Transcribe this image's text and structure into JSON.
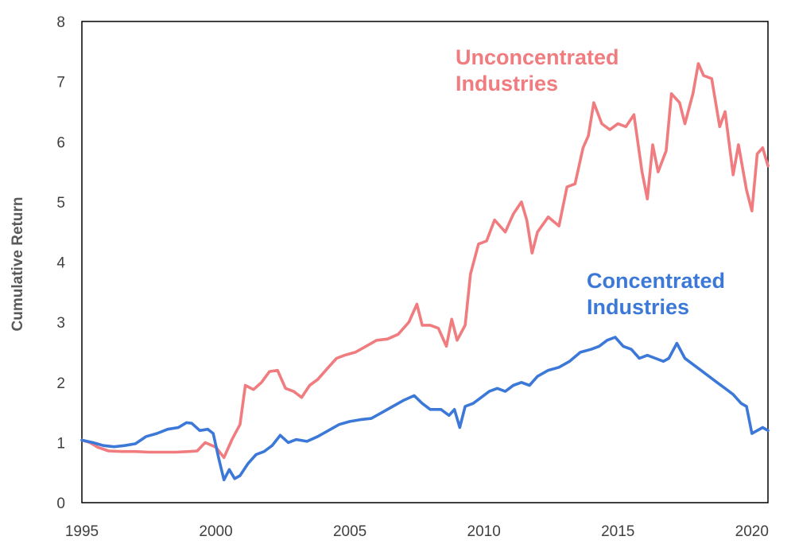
{
  "chart_data": {
    "type": "line",
    "ylabel": "Cumulative Return",
    "xlabel": "",
    "xlim": [
      1995,
      2020.6
    ],
    "ylim": [
      0,
      8
    ],
    "xticks": [
      1995,
      2000,
      2005,
      2010,
      2015,
      2020
    ],
    "yticks": [
      0,
      1,
      2,
      3,
      4,
      5,
      6,
      7,
      8
    ],
    "grid": false,
    "annotations": [
      {
        "lines": [
          "Unconcentrated",
          "Industries"
        ],
        "color": "#f07c7f",
        "series": 0
      },
      {
        "lines": [
          "Concentrated",
          "Industries"
        ],
        "color": "#3c78d8",
        "series": 1
      }
    ],
    "series": [
      {
        "name": "Unconcentrated Industries",
        "color": "#f07c7f",
        "x": [
          1995,
          1995.3,
          1995.6,
          1996.0,
          1996.5,
          1997.0,
          1997.5,
          1998.0,
          1998.5,
          1999.0,
          1999.3,
          1999.6,
          2000.0,
          2000.3,
          2000.6,
          2000.9,
          2001.1,
          2001.4,
          2001.7,
          2002.0,
          2002.3,
          2002.6,
          2002.9,
          2003.2,
          2003.5,
          2003.8,
          2004.2,
          2004.5,
          2004.8,
          2005.2,
          2005.6,
          2006.0,
          2006.4,
          2006.8,
          2007.2,
          2007.5,
          2007.7,
          2008.0,
          2008.3,
          2008.6,
          2008.8,
          2009.0,
          2009.3,
          2009.5,
          2009.8,
          2010.1,
          2010.4,
          2010.8,
          2011.1,
          2011.4,
          2011.6,
          2011.8,
          2012.0,
          2012.4,
          2012.8,
          2013.1,
          2013.4,
          2013.7,
          2013.9,
          2014.1,
          2014.4,
          2014.7,
          2015.0,
          2015.3,
          2015.6,
          2015.9,
          2016.1,
          2016.3,
          2016.5,
          2016.8,
          2017.0,
          2017.3,
          2017.5,
          2017.8,
          2018.0,
          2018.2,
          2018.5,
          2018.8,
          2019.0,
          2019.3,
          2019.5,
          2019.8,
          2020.0,
          2020.2,
          2020.4,
          2020.6
        ],
        "values": [
          1.04,
          1.0,
          0.92,
          0.86,
          0.85,
          0.85,
          0.84,
          0.84,
          0.84,
          0.85,
          0.86,
          1.0,
          0.92,
          0.75,
          1.05,
          1.3,
          1.95,
          1.88,
          2.0,
          2.18,
          2.2,
          1.9,
          1.85,
          1.75,
          1.95,
          2.05,
          2.25,
          2.4,
          2.45,
          2.5,
          2.6,
          2.7,
          2.72,
          2.8,
          3.0,
          3.3,
          2.95,
          2.95,
          2.9,
          2.6,
          3.05,
          2.7,
          2.95,
          3.8,
          4.3,
          4.35,
          4.7,
          4.5,
          4.8,
          5.0,
          4.7,
          4.15,
          4.5,
          4.75,
          4.6,
          5.25,
          5.3,
          5.9,
          6.1,
          6.65,
          6.3,
          6.2,
          6.3,
          6.25,
          6.45,
          5.5,
          5.05,
          5.95,
          5.5,
          5.85,
          6.8,
          6.65,
          6.3,
          6.8,
          7.3,
          7.1,
          7.05,
          6.25,
          6.5,
          5.45,
          5.95,
          5.2,
          4.85,
          5.8,
          5.9,
          5.6
        ]
      },
      {
        "name": "Concentrated Industries",
        "color": "#3c78d8",
        "x": [
          1995,
          1995.4,
          1995.8,
          1996.2,
          1996.6,
          1997.0,
          1997.4,
          1997.8,
          1998.2,
          1998.6,
          1998.9,
          1999.1,
          1999.4,
          1999.7,
          1999.9,
          2000.1,
          2000.3,
          2000.5,
          2000.7,
          2000.9,
          2001.2,
          2001.5,
          2001.8,
          2002.1,
          2002.4,
          2002.7,
          2003.0,
          2003.4,
          2003.8,
          2004.2,
          2004.6,
          2005.0,
          2005.4,
          2005.8,
          2006.2,
          2006.6,
          2007.0,
          2007.4,
          2007.7,
          2008.0,
          2008.4,
          2008.7,
          2008.9,
          2009.1,
          2009.3,
          2009.6,
          2009.9,
          2010.2,
          2010.5,
          2010.8,
          2011.1,
          2011.4,
          2011.7,
          2012.0,
          2012.4,
          2012.8,
          2013.2,
          2013.6,
          2014.0,
          2014.3,
          2014.6,
          2014.9,
          2015.2,
          2015.5,
          2015.8,
          2016.1,
          2016.4,
          2016.7,
          2016.9,
          2017.2,
          2017.5,
          2017.8,
          2018.1,
          2018.4,
          2018.7,
          2019.0,
          2019.3,
          2019.6,
          2019.8,
          2020.0,
          2020.2,
          2020.4,
          2020.6
        ],
        "values": [
          1.04,
          1.0,
          0.95,
          0.93,
          0.95,
          0.98,
          1.1,
          1.15,
          1.22,
          1.25,
          1.33,
          1.32,
          1.2,
          1.22,
          1.15,
          0.75,
          0.38,
          0.55,
          0.4,
          0.45,
          0.65,
          0.8,
          0.85,
          0.95,
          1.12,
          1.0,
          1.05,
          1.02,
          1.1,
          1.2,
          1.3,
          1.35,
          1.38,
          1.4,
          1.5,
          1.6,
          1.7,
          1.78,
          1.65,
          1.55,
          1.55,
          1.45,
          1.55,
          1.25,
          1.6,
          1.65,
          1.75,
          1.85,
          1.9,
          1.85,
          1.95,
          2.0,
          1.95,
          2.1,
          2.2,
          2.25,
          2.35,
          2.5,
          2.55,
          2.6,
          2.7,
          2.75,
          2.6,
          2.55,
          2.4,
          2.45,
          2.4,
          2.35,
          2.4,
          2.65,
          2.4,
          2.3,
          2.2,
          2.1,
          2.0,
          1.9,
          1.8,
          1.65,
          1.6,
          1.15,
          1.2,
          1.25,
          1.2
        ]
      }
    ]
  }
}
